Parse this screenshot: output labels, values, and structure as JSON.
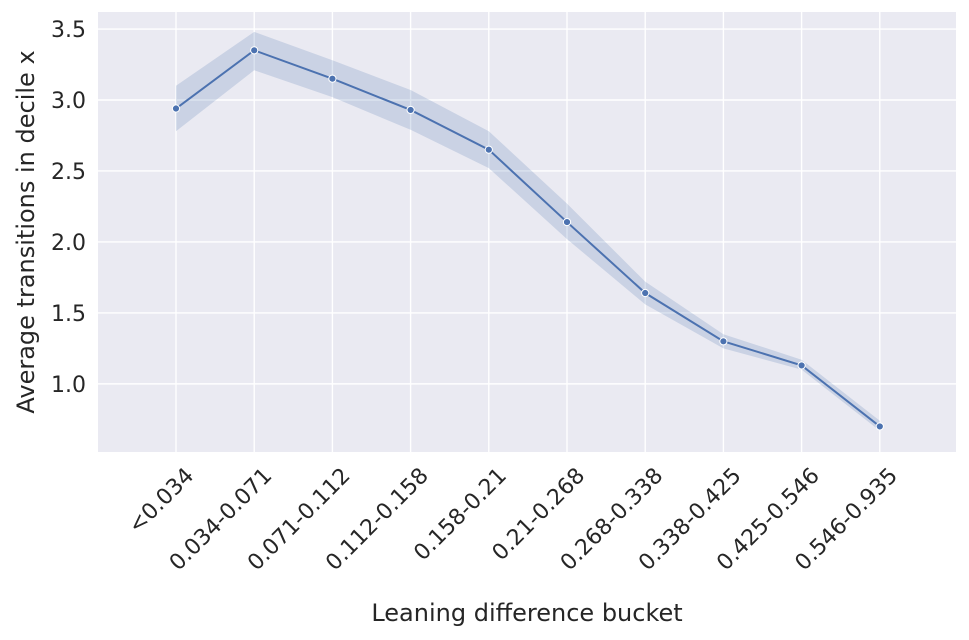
{
  "chart_data": {
    "type": "line",
    "title": "",
    "xlabel": "Leaning difference bucket",
    "ylabel": "Average transitions in decile x",
    "categories": [
      "<0.034",
      "0.034-0.071",
      "0.071-0.112",
      "0.112-0.158",
      "0.158-0.21",
      "0.21-0.268",
      "0.268-0.338",
      "0.338-0.425",
      "0.425-0.546",
      "0.546-0.935"
    ],
    "series": [
      {
        "values": [
          2.94,
          3.35,
          3.15,
          2.93,
          2.65,
          2.14,
          1.64,
          1.3,
          1.13,
          0.7
        ],
        "ci_upper": [
          3.1,
          3.48,
          3.28,
          3.07,
          2.78,
          2.27,
          1.72,
          1.35,
          1.17,
          0.74
        ],
        "ci_lower": [
          2.78,
          3.21,
          3.02,
          2.79,
          2.52,
          2.02,
          1.56,
          1.25,
          1.1,
          0.67
        ],
        "color": "#4c72b0"
      }
    ],
    "ylim": [
      0.52,
      3.62
    ],
    "yticks": [
      1.0,
      1.5,
      2.0,
      2.5,
      3.0,
      3.5
    ],
    "ytick_labels": [
      "1.0",
      "1.5",
      "2.0",
      "2.5",
      "3.0",
      "3.5"
    ],
    "grid": true,
    "background_color": "#eaeaf2",
    "grid_color": "#ffffff"
  }
}
